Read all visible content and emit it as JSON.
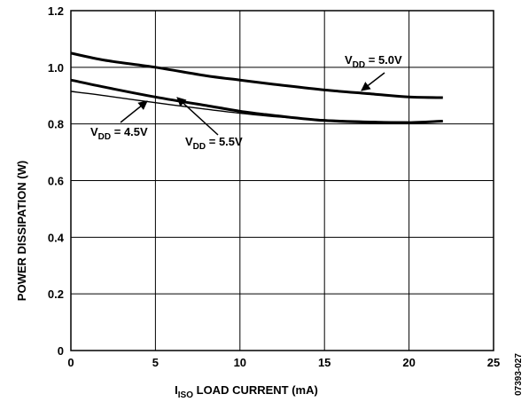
{
  "chart_data": {
    "type": "line",
    "title": "",
    "xlabel": {
      "main": "I",
      "sub": "ISO",
      "rest": " LOAD CURRENT (mA)"
    },
    "ylabel": "POWER DISSIPATION (W)",
    "xlim": [
      0,
      25
    ],
    "ylim": [
      0,
      1.2
    ],
    "xticks": [
      0,
      5,
      10,
      15,
      20,
      25
    ],
    "yticks": [
      0,
      0.2,
      0.4,
      0.6,
      0.8,
      1.0,
      1.2
    ],
    "xtick_labels": [
      "0",
      "5",
      "10",
      "15",
      "20",
      "25"
    ],
    "ytick_labels": [
      "0",
      "0.2",
      "0.4",
      "0.6",
      "0.8",
      "1.0",
      "1.2"
    ],
    "grid": true,
    "series": [
      {
        "name": "VDD = 5.0V",
        "x": [
          0,
          2,
          5,
          8,
          10,
          12,
          15,
          18,
          20,
          22
        ],
        "y": [
          1.05,
          1.025,
          1.0,
          0.97,
          0.955,
          0.94,
          0.92,
          0.905,
          0.895,
          0.893
        ],
        "stroke": 3
      },
      {
        "name": "VDD = 5.5V",
        "x": [
          0,
          2,
          5,
          8,
          10,
          12,
          15,
          18,
          20,
          22
        ],
        "y": [
          0.955,
          0.93,
          0.895,
          0.865,
          0.845,
          0.83,
          0.812,
          0.806,
          0.805,
          0.81
        ],
        "stroke": 3
      },
      {
        "name": "VDD = 4.5V",
        "x": [
          0,
          2,
          5,
          8,
          10,
          12,
          15,
          18,
          20
        ],
        "y": [
          0.915,
          0.9,
          0.875,
          0.852,
          0.838,
          0.826,
          0.815,
          0.809,
          0.807
        ],
        "stroke": 1.4
      }
    ],
    "annotations": [
      {
        "main": "V",
        "sub": "DD",
        "rest": " = 5.0V",
        "series": "VDD = 5.0V",
        "placement": "upper-right"
      },
      {
        "main": "V",
        "sub": "DD",
        "rest": " = 4.5V",
        "series": "VDD = 4.5V",
        "placement": "lower-left"
      },
      {
        "main": "V",
        "sub": "DD",
        "rest": " = 5.5V",
        "series": "VDD = 5.5V",
        "placement": "lower-middle"
      }
    ],
    "figure_id": "07393-027"
  }
}
